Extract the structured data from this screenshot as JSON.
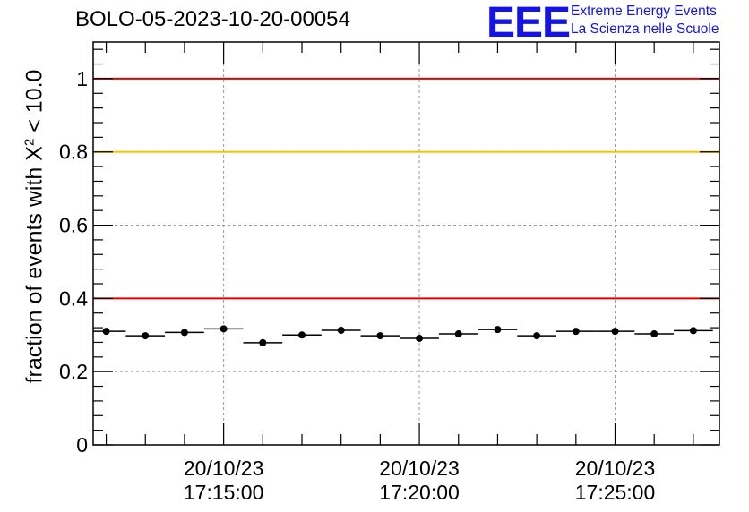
{
  "chart_data": {
    "type": "scatter",
    "title": "BOLO-05-2023-10-20-00054",
    "ylabel_main": "fraction of events with X",
    "ylabel_sup": "2",
    "ylabel_tail": " < 10.0",
    "xlabel": "",
    "ylim": [
      0,
      1.1
    ],
    "yticks": [
      {
        "value": 0,
        "label": "0"
      },
      {
        "value": 0.2,
        "label": "0.2"
      },
      {
        "value": 0.4,
        "label": "0.4"
      },
      {
        "value": 0.6,
        "label": "0.6"
      },
      {
        "value": 0.8,
        "label": "0.8"
      },
      {
        "value": 1,
        "label": "1"
      }
    ],
    "xlim": [
      "17:11:40",
      "17:27:40"
    ],
    "xticks": [
      {
        "time": "17:15:00",
        "date": "20/10/23",
        "label": "17:15:00"
      },
      {
        "time": "17:20:00",
        "date": "20/10/23",
        "label": "17:20:00"
      },
      {
        "time": "17:25:00",
        "date": "20/10/23",
        "label": "17:25:00"
      }
    ],
    "grid": true,
    "reference_lines": [
      {
        "y": 1.0,
        "color": "#e00000"
      },
      {
        "y": 0.8,
        "color": "#ffc000"
      },
      {
        "y": 0.4,
        "color": "#e00000"
      }
    ],
    "points": [
      {
        "t": "17:12:00",
        "y": 0.31
      },
      {
        "t": "17:13:00",
        "y": 0.298
      },
      {
        "t": "17:14:00",
        "y": 0.307
      },
      {
        "t": "17:15:00",
        "y": 0.317
      },
      {
        "t": "17:16:00",
        "y": 0.279
      },
      {
        "t": "17:17:00",
        "y": 0.3
      },
      {
        "t": "17:18:00",
        "y": 0.313
      },
      {
        "t": "17:19:00",
        "y": 0.298
      },
      {
        "t": "17:20:00",
        "y": 0.291
      },
      {
        "t": "17:21:00",
        "y": 0.303
      },
      {
        "t": "17:22:00",
        "y": 0.315
      },
      {
        "t": "17:23:00",
        "y": 0.298
      },
      {
        "t": "17:24:00",
        "y": 0.31
      },
      {
        "t": "17:25:00",
        "y": 0.31
      },
      {
        "t": "17:26:00",
        "y": 0.303
      },
      {
        "t": "17:27:00",
        "y": 0.312
      }
    ],
    "bin_width_seconds": 60,
    "marker_color": "#000000"
  },
  "logo": {
    "mark": "EEE",
    "line1": "Extreme Energy Events",
    "line2": "La Scienza nelle Scuole",
    "color": "#1414e6"
  }
}
